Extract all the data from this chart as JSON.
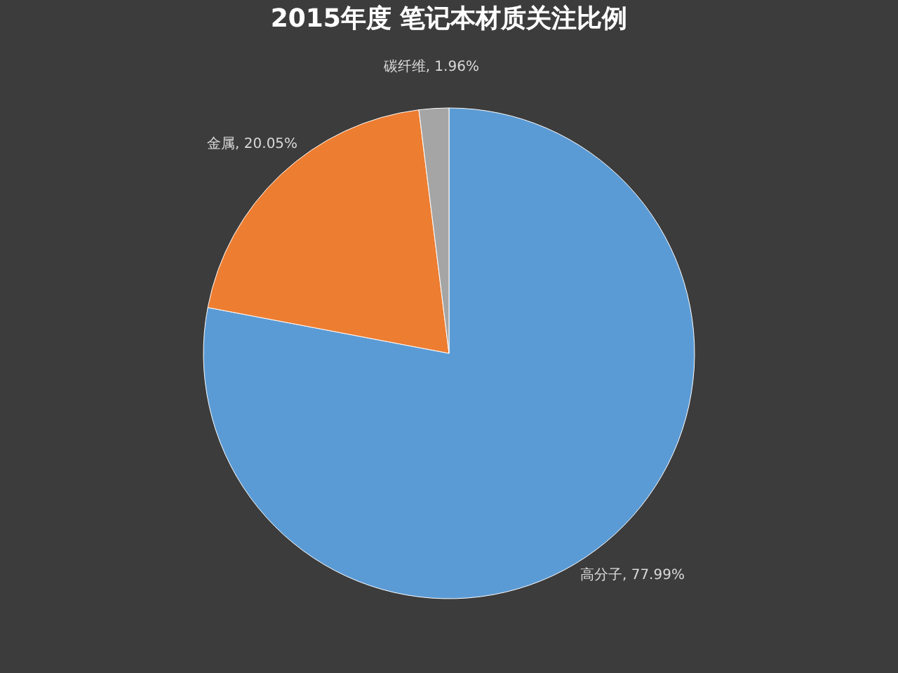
{
  "chart_data": {
    "type": "pie",
    "title": "2015年度 笔记本材质关注比例",
    "categories": [
      "高分子",
      "金属",
      "碳纤维"
    ],
    "values": [
      77.99,
      20.05,
      1.96
    ],
    "colors": [
      "#5b9bd5",
      "#ed7d31",
      "#a5a5a5"
    ],
    "value_labels": [
      "77.99%",
      "20.05%",
      "1.96%"
    ],
    "legend": false
  }
}
